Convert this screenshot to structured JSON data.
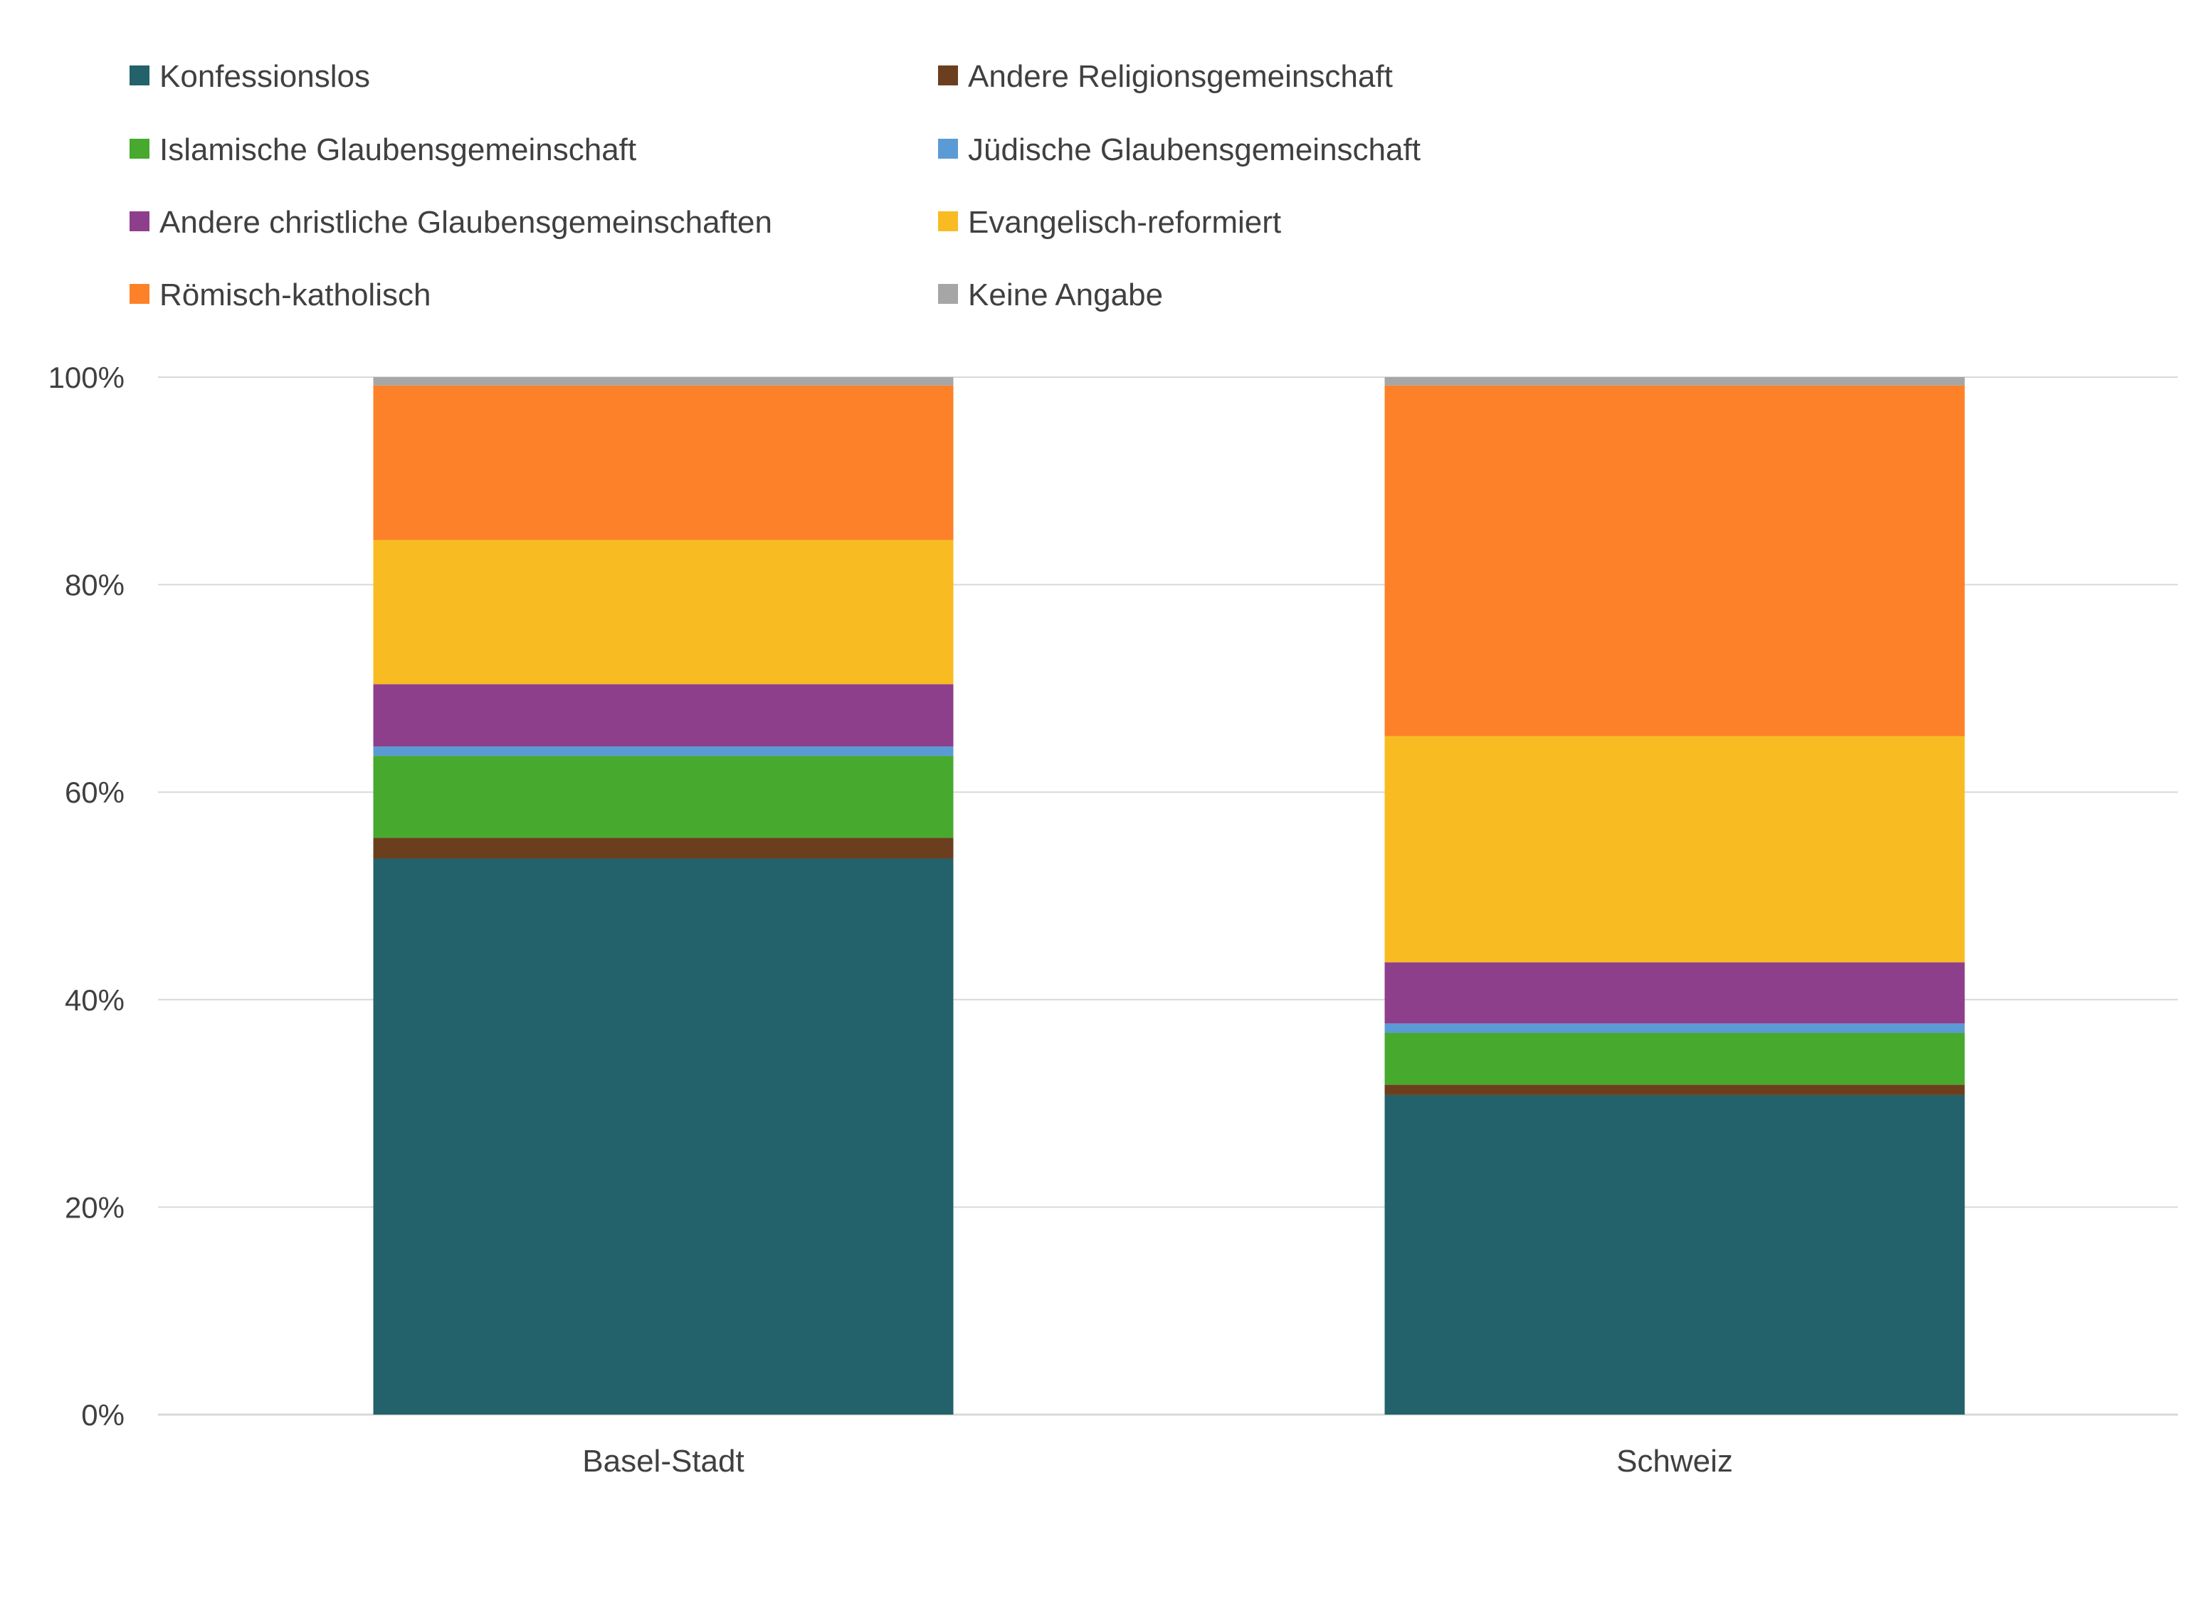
{
  "chart_data": {
    "type": "bar",
    "stacked": true,
    "categories": [
      "Basel-Stadt",
      "Schweiz"
    ],
    "ylim": [
      0,
      100
    ],
    "y_ticks": [
      "0%",
      "20%",
      "40%",
      "60%",
      "80%",
      "100%"
    ],
    "grid": true,
    "legend_position": "top",
    "series": [
      {
        "name": "Konfessionslos",
        "color": "#23616b",
        "values": [
          53.6,
          30.8
        ]
      },
      {
        "name": "Andere Religionsgemeinschaft",
        "color": "#6b3f1e",
        "values": [
          2.0,
          1.0
        ]
      },
      {
        "name": "Islamische Glaubensgemeinschaft",
        "color": "#47a92d",
        "values": [
          7.9,
          5.0
        ]
      },
      {
        "name": "Jüdische Glaubensgemeinschaft",
        "color": "#5b9bd5",
        "values": [
          0.9,
          0.9
        ]
      },
      {
        "name": "Andere christliche Glaubensgemeinschaften",
        "color": "#8e3f8c",
        "values": [
          6.0,
          5.9
        ]
      },
      {
        "name": "Evangelisch-reformiert",
        "color": "#f8bc22",
        "values": [
          13.9,
          21.8
        ]
      },
      {
        "name": "Römisch-katholisch",
        "color": "#fd8128",
        "values": [
          14.9,
          33.8
        ]
      },
      {
        "name": "Keine Angabe",
        "color": "#a6a6a6",
        "values": [
          0.8,
          0.8
        ]
      }
    ],
    "legend_order": [
      "Konfessionslos",
      "Andere Religionsgemeinschaft",
      "Islamische Glaubensgemeinschaft",
      "Jüdische Glaubensgemeinschaft",
      "Andere christliche Glaubensgemeinschaften",
      "Evangelisch-reformiert",
      "Römisch-katholisch",
      "Keine Angabe"
    ],
    "axis_color": "#d9d9d9",
    "text_color": "#404040"
  }
}
